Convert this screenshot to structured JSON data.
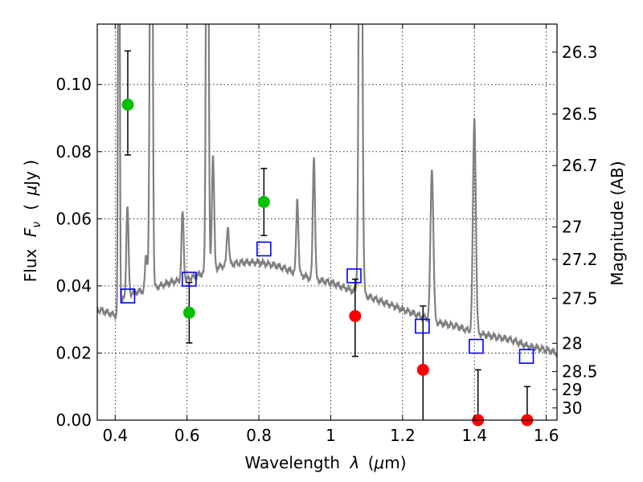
{
  "chart_data": {
    "type": "scatter",
    "xlabel_text": "Wavelength",
    "xlabel_symbol": "λ",
    "xlabel_unit_open": "(",
    "xlabel_unit_mu": "μ",
    "xlabel_unit_rest": "m)",
    "ylabel_text": "Flux",
    "ylabel_symbol_f": "F",
    "ylabel_symbol_sub": "ν",
    "ylabel_unit_open": "(",
    "ylabel_unit_mu": "μ",
    "ylabel_unit_rest": "Jy )",
    "y2label": "Magnitude (AB)",
    "xlim": [
      0.35,
      1.63
    ],
    "ylim": [
      0.0,
      0.118
    ],
    "x_ticks": [
      {
        "value": 0.4,
        "label": "0.4"
      },
      {
        "value": 0.6,
        "label": "0.6"
      },
      {
        "value": 0.8,
        "label": "0.8"
      },
      {
        "value": 1.0,
        "label": "1"
      },
      {
        "value": 1.2,
        "label": "1.2"
      },
      {
        "value": 1.4,
        "label": "1.4"
      },
      {
        "value": 1.6,
        "label": "1.6"
      }
    ],
    "y_ticks": [
      {
        "value": 0.0,
        "label": "0.00"
      },
      {
        "value": 0.02,
        "label": "0.02"
      },
      {
        "value": 0.04,
        "label": "0.04"
      },
      {
        "value": 0.06,
        "label": "0.06"
      },
      {
        "value": 0.08,
        "label": "0.08"
      },
      {
        "value": 0.1,
        "label": "0.10"
      }
    ],
    "mag_ticks": [
      "26.3",
      "26.5",
      "26.7",
      "27",
      "27.2",
      "27.5",
      "28",
      "28.5",
      "29",
      "30"
    ],
    "colors": {
      "spectrum": "#808080",
      "model_square": "#0000ff",
      "detected": "#00c000",
      "upper": "#ff0000",
      "errorbar": "#000000",
      "grid": "#000000"
    },
    "spectrum": {
      "name": "template spectrum",
      "continuum": [
        [
          0.35,
          0.033
        ],
        [
          0.38,
          0.032
        ],
        [
          0.405,
          0.031
        ],
        [
          0.41,
          0.034
        ],
        [
          0.43,
          0.037
        ],
        [
          0.45,
          0.038
        ],
        [
          0.5,
          0.039
        ],
        [
          0.55,
          0.041
        ],
        [
          0.6,
          0.042
        ],
        [
          0.65,
          0.044
        ],
        [
          0.7,
          0.046
        ],
        [
          0.75,
          0.047
        ],
        [
          0.8,
          0.047
        ],
        [
          0.85,
          0.046
        ],
        [
          0.9,
          0.044
        ],
        [
          0.95,
          0.042
        ],
        [
          1.0,
          0.041
        ],
        [
          1.05,
          0.039
        ],
        [
          1.1,
          0.037
        ],
        [
          1.15,
          0.035
        ],
        [
          1.2,
          0.033
        ],
        [
          1.25,
          0.031
        ],
        [
          1.3,
          0.029
        ],
        [
          1.35,
          0.028
        ],
        [
          1.4,
          0.026
        ],
        [
          1.45,
          0.025
        ],
        [
          1.5,
          0.024
        ],
        [
          1.55,
          0.022
        ],
        [
          1.6,
          0.021
        ],
        [
          1.63,
          0.02
        ]
      ],
      "lines": [
        {
          "center": 0.4102,
          "width": 0.002,
          "peak": 0.25
        },
        {
          "center": 0.434,
          "width": 0.003,
          "peak": 0.064
        },
        {
          "center": 0.4861,
          "width": 0.003,
          "peak": 0.049
        },
        {
          "center": 0.4959,
          "width": 0.003,
          "peak": 0.06
        },
        {
          "center": 0.5007,
          "width": 0.003,
          "peak": 0.25
        },
        {
          "center": 0.5876,
          "width": 0.003,
          "peak": 0.062
        },
        {
          "center": 0.6563,
          "width": 0.003,
          "peak": 0.25
        },
        {
          "center": 0.6716,
          "width": 0.003,
          "peak": 0.065
        },
        {
          "center": 0.6731,
          "width": 0.003,
          "peak": 0.06
        },
        {
          "center": 0.7136,
          "width": 0.003,
          "peak": 0.058
        },
        {
          "center": 0.907,
          "width": 0.003,
          "peak": 0.066
        },
        {
          "center": 0.9532,
          "width": 0.003,
          "peak": 0.079
        },
        {
          "center": 1.083,
          "width": 0.004,
          "peak": 0.25
        },
        {
          "center": 1.2818,
          "width": 0.004,
          "peak": 0.075
        },
        {
          "center": 1.4,
          "width": 0.004,
          "peak": 0.09
        }
      ]
    },
    "model_points": {
      "name": "model photometry",
      "x": [
        0.435,
        0.606,
        0.814,
        1.065,
        1.255,
        1.405,
        1.545
      ],
      "y": [
        0.037,
        0.042,
        0.051,
        0.043,
        0.028,
        0.022,
        0.019
      ]
    },
    "detections": {
      "name": "detections",
      "x": [
        0.435,
        0.606,
        0.814
      ],
      "y": [
        0.094,
        0.032,
        0.065
      ],
      "err_low": [
        0.079,
        0.023,
        0.055
      ],
      "err_high": [
        0.11,
        0.041,
        0.075
      ]
    },
    "upper_limits": {
      "name": "red points",
      "x": [
        1.068,
        1.257,
        1.41,
        1.547
      ],
      "y": [
        0.031,
        0.015,
        0.0,
        0.0
      ],
      "err_low": [
        0.019,
        0.0,
        0.0,
        0.0
      ],
      "err_high": [
        0.042,
        0.034,
        0.015,
        0.01
      ]
    }
  }
}
